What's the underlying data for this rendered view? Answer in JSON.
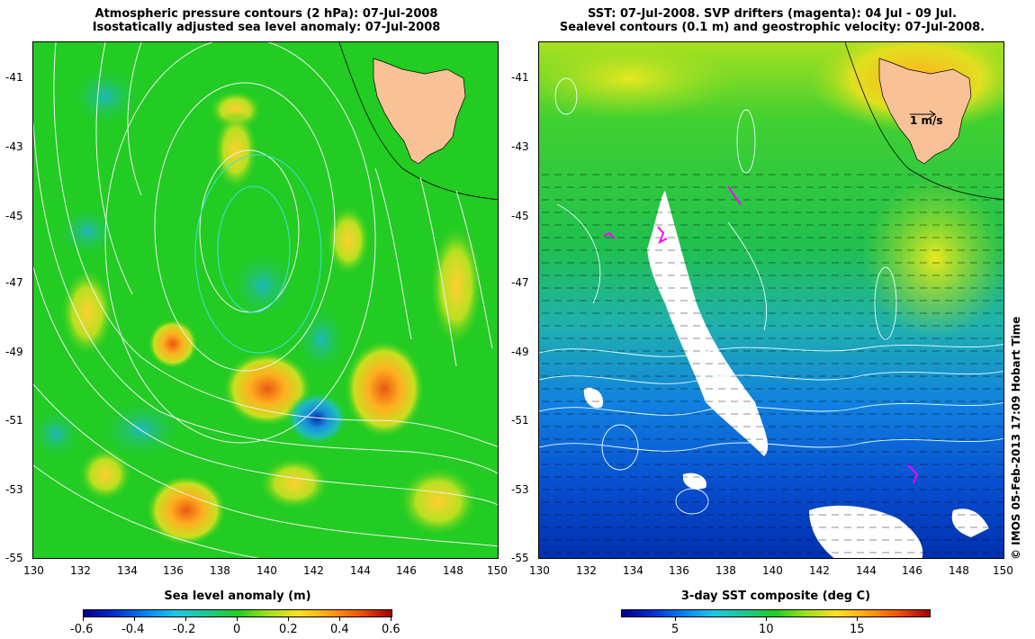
{
  "left_panel": {
    "title_line1": "Atmospheric pressure contours (2 hPa): 07-Jul-2008",
    "title_line2": "Isostatically adjusted sea level anomaly: 07-Jul-2008",
    "colorbar_label": "Sea level anomaly (m)",
    "colorbar_ticks": [
      "-0.6",
      "-0.4",
      "-0.2",
      "0",
      "0.2",
      "0.4",
      "0.6"
    ]
  },
  "right_panel": {
    "title_line1": "SST: 07-Jul-2008. SVP drifters (magenta): 04 Jul - 09 Jul.",
    "title_line2": "Sealevel contours (0.1 m) and geostrophic velocity: 07-Jul-2008.",
    "colorbar_label": "3-day SST composite (deg C)",
    "colorbar_ticks": [
      "5",
      "10",
      "15"
    ],
    "scale_label": "1 m/s"
  },
  "lat_ticks": [
    "-41",
    "-43",
    "-45",
    "-47",
    "-49",
    "-51",
    "-53",
    "-55"
  ],
  "lon_ticks": [
    "130",
    "132",
    "134",
    "136",
    "138",
    "140",
    "142",
    "144",
    "146",
    "148",
    "150"
  ],
  "credit": "© IMOS 05-Feb-2013 17:09 Hobart Time",
  "colors": {
    "land": "#f9c296",
    "sla_background": "#22cc22",
    "sst_cold": "#0033cc",
    "sst_warm": "#ffcc00",
    "drifters": "#ff00ff"
  }
}
